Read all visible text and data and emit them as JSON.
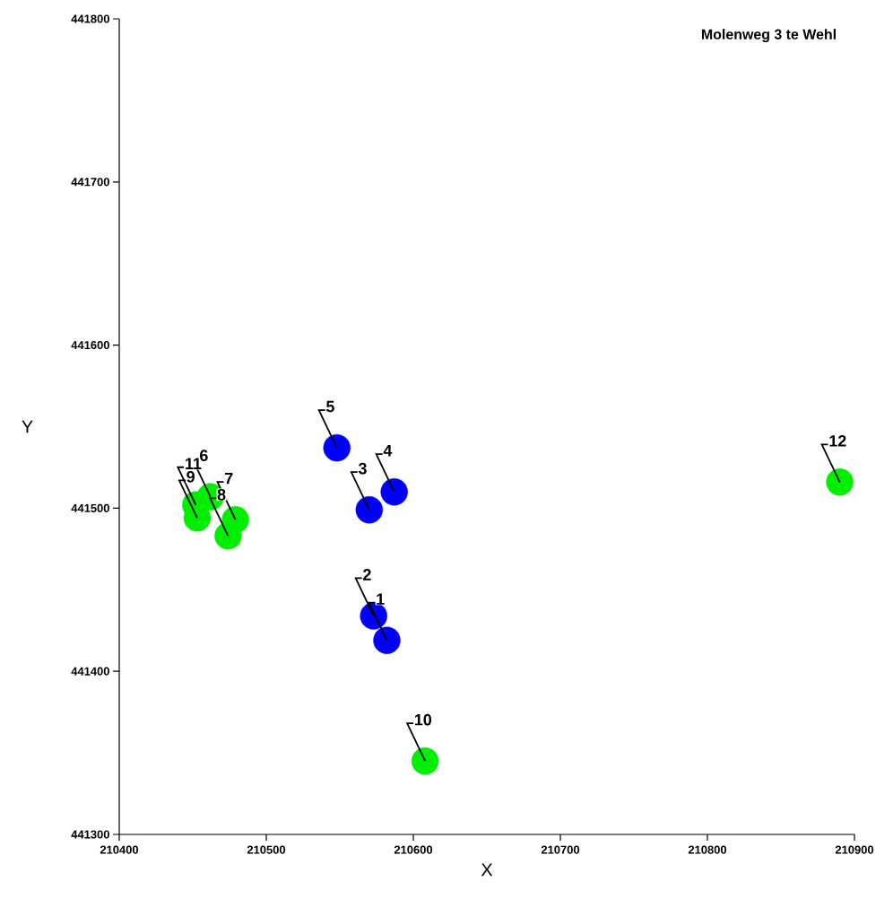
{
  "chart_data": {
    "type": "scatter",
    "title": "Molenweg 3 te Wehl",
    "xlabel": "X",
    "ylabel": "Y",
    "marker": "circle",
    "xlim": [
      210400,
      210900
    ],
    "ylim": [
      441300,
      441800
    ],
    "xticks": [
      210400,
      210500,
      210600,
      210700,
      210800,
      210900
    ],
    "yticks": [
      441300,
      441400,
      441500,
      441600,
      441700,
      441800
    ],
    "series": [
      {
        "color": "#0000ff",
        "x": [
          210582,
          210573,
          210570,
          210587,
          210548
        ],
        "values": [
          441419,
          441434,
          441499,
          441510,
          441537
        ]
      },
      {
        "color": "#00ee00",
        "x": [
          210462,
          210479,
          210474,
          210453,
          210608,
          210452,
          210890
        ],
        "values": [
          441507,
          441493,
          441483,
          441494,
          441345,
          441502,
          441516
        ]
      }
    ],
    "annotations": [
      {
        "text": "1",
        "x": 210582,
        "y": 441419
      },
      {
        "text": "2",
        "x": 210573,
        "y": 441434
      },
      {
        "text": "3",
        "x": 210570,
        "y": 441499
      },
      {
        "text": "4",
        "x": 210587,
        "y": 441510
      },
      {
        "text": "5",
        "x": 210548,
        "y": 441537
      },
      {
        "text": "6",
        "x": 210462,
        "y": 441507
      },
      {
        "text": "7",
        "x": 210479,
        "y": 441493
      },
      {
        "text": "8",
        "x": 210474,
        "y": 441483
      },
      {
        "text": "9",
        "x": 210453,
        "y": 441494
      },
      {
        "text": "10",
        "x": 210608,
        "y": 441345
      },
      {
        "text": "11",
        "x": 210452,
        "y": 441502
      },
      {
        "text": "12",
        "x": 210890,
        "y": 441516
      }
    ]
  }
}
